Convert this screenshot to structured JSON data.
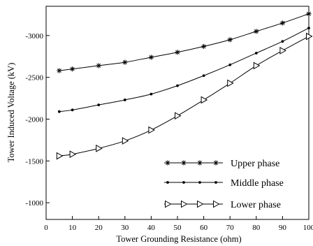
{
  "chart_data": {
    "type": "line",
    "xlabel": "Tower Grounding Resistance (ohm)",
    "ylabel": "Tower Induced Voltage (kV)",
    "xlim": [
      0,
      100
    ],
    "ylim": [
      -800,
      -3350
    ],
    "x_ticks": [
      0,
      10,
      20,
      30,
      40,
      50,
      60,
      70,
      80,
      90,
      100
    ],
    "y_ticks": [
      -1000,
      -1500,
      -2000,
      -2500,
      -3000
    ],
    "grid": false,
    "legend_position": "bottom-right",
    "x": [
      5,
      10,
      20,
      30,
      40,
      50,
      60,
      70,
      80,
      90,
      100
    ],
    "series": [
      {
        "name": "Upper phase",
        "marker": "asterisk",
        "values": [
          -2580,
          -2600,
          -2640,
          -2680,
          -2740,
          -2800,
          -2870,
          -2950,
          -3050,
          -3150,
          -3260
        ]
      },
      {
        "name": "Middle phase",
        "marker": "dot",
        "values": [
          -2090,
          -2110,
          -2170,
          -2230,
          -2300,
          -2400,
          -2520,
          -2650,
          -2790,
          -2930,
          -3090
        ]
      },
      {
        "name": "Lower phase",
        "marker": "triangle-right",
        "values": [
          -1560,
          -1580,
          -1650,
          -1740,
          -1870,
          -2040,
          -2230,
          -2430,
          -2640,
          -2820,
          -2990
        ]
      }
    ]
  }
}
